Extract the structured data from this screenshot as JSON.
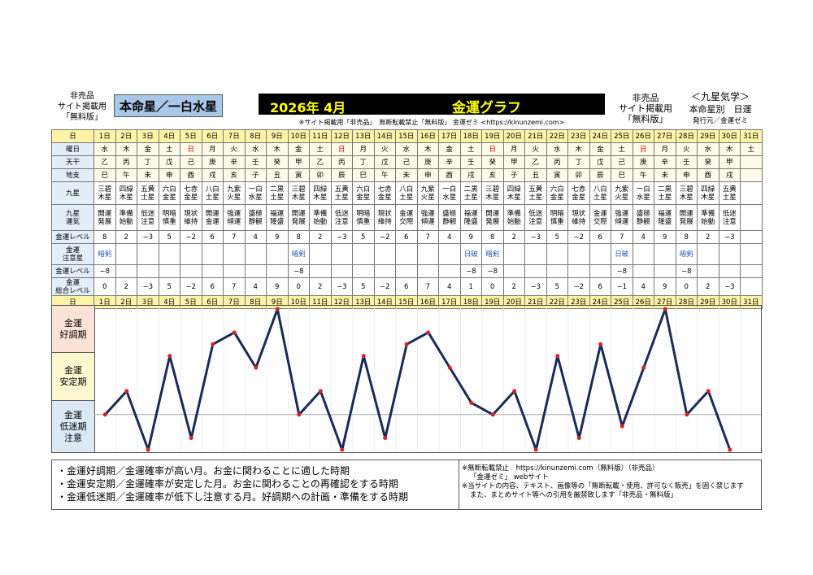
{
  "header": {
    "left_lines": [
      "非売品",
      "サイト掲載用",
      "「無料版」"
    ],
    "star_label": "本命星／一白水星",
    "year_month": "2026年 4月",
    "graph_title": "金運グラフ",
    "notice": "※サイト掲載用「非売品」　無断転載禁止「無料版」 金運ゼミ <https://kinunzemi.com>",
    "right_lines": [
      "非売品",
      "サイト掲載用",
      "「無料版」"
    ],
    "far_right_lines": [
      "＜九星気学＞",
      "本命星別　日運",
      "発行元／金運ゼミ"
    ]
  },
  "table": {
    "labels": {
      "day": "日",
      "weekday": "曜日",
      "heaven": "天干",
      "earth": "地支",
      "kyusei": "九星",
      "kyusei_luck": [
        "九星",
        "運気"
      ],
      "money_level": "金運レベル",
      "money_caution": [
        "金運",
        "注意星"
      ],
      "money_level2": "金運レベル",
      "total_level": [
        "金運",
        "総合レベル"
      ]
    },
    "days": [
      "1日",
      "2日",
      "3日",
      "4日",
      "5日",
      "6日",
      "7日",
      "8日",
      "9日",
      "10日",
      "11日",
      "12日",
      "13日",
      "14日",
      "15日",
      "16日",
      "17日",
      "18日",
      "19日",
      "20日",
      "21日",
      "22日",
      "23日",
      "24日",
      "25日",
      "26日",
      "27日",
      "28日",
      "29日",
      "30日",
      "31日"
    ],
    "weekdays": [
      "水",
      "木",
      "金",
      "土",
      "日",
      "月",
      "火",
      "水",
      "木",
      "金",
      "土",
      "日",
      "月",
      "火",
      "水",
      "木",
      "金",
      "土",
      "日",
      "月",
      "火",
      "水",
      "木",
      "金",
      "土",
      "日",
      "月",
      "火",
      "水",
      "木",
      "土"
    ],
    "heaven": [
      "乙",
      "丙",
      "丁",
      "戊",
      "己",
      "庚",
      "辛",
      "壬",
      "癸",
      "甲",
      "乙",
      "丙",
      "丁",
      "戊",
      "己",
      "庚",
      "辛",
      "壬",
      "癸",
      "甲",
      "乙",
      "丙",
      "丁",
      "戊",
      "己",
      "庚",
      "辛",
      "壬",
      "癸",
      "甲",
      ""
    ],
    "earth": [
      "巳",
      "午",
      "未",
      "申",
      "酉",
      "戌",
      "亥",
      "子",
      "丑",
      "寅",
      "卯",
      "辰",
      "巳",
      "午",
      "未",
      "申",
      "酉",
      "戌",
      "亥",
      "子",
      "丑",
      "寅",
      "卯",
      "辰",
      "巳",
      "午",
      "未",
      "申",
      "酉",
      "戌",
      ""
    ],
    "kyusei": [
      [
        "三碧",
        "木星"
      ],
      [
        "四緑",
        "木星"
      ],
      [
        "五黄",
        "土星"
      ],
      [
        "六白",
        "金星"
      ],
      [
        "七赤",
        "金星"
      ],
      [
        "八白",
        "土星"
      ],
      [
        "九紫",
        "火星"
      ],
      [
        "一白",
        "水星"
      ],
      [
        "二黒",
        "土星"
      ],
      [
        "三碧",
        "木星"
      ],
      [
        "四緑",
        "木星"
      ],
      [
        "五黄",
        "土星"
      ],
      [
        "六白",
        "金星"
      ],
      [
        "七赤",
        "金星"
      ],
      [
        "八白",
        "土星"
      ],
      [
        "九紫",
        "火星"
      ],
      [
        "一白",
        "水星"
      ],
      [
        "二黒",
        "土星"
      ],
      [
        "三碧",
        "木星"
      ],
      [
        "四緑",
        "木星"
      ],
      [
        "五黄",
        "土星"
      ],
      [
        "六白",
        "金星"
      ],
      [
        "七赤",
        "金星"
      ],
      [
        "八白",
        "土星"
      ],
      [
        "九紫",
        "火星"
      ],
      [
        "一白",
        "水星"
      ],
      [
        "二黒",
        "土星"
      ],
      [
        "三碧",
        "木星"
      ],
      [
        "四緑",
        "木星"
      ],
      [
        "五黄",
        "土星"
      ],
      [
        "",
        ""
      ]
    ],
    "luck": [
      [
        "開運",
        "発展"
      ],
      [
        "準備",
        "始動"
      ],
      [
        "低迷",
        "注意"
      ],
      [
        "明暗",
        "慎重"
      ],
      [
        "現状",
        "維持"
      ],
      [
        "開運",
        "金運"
      ],
      [
        "強運",
        "傾運"
      ],
      [
        "盛極",
        "静観"
      ],
      [
        "福運",
        "隆盛"
      ],
      [
        "開運",
        "発展"
      ],
      [
        "準備",
        "始動"
      ],
      [
        "低迷",
        "注意"
      ],
      [
        "明暗",
        "慎重"
      ],
      [
        "現状",
        "維持"
      ],
      [
        "金運",
        "交際"
      ],
      [
        "強運",
        "傾運"
      ],
      [
        "盛極",
        "静観"
      ],
      [
        "福運",
        "隆盛"
      ],
      [
        "開運",
        "発展"
      ],
      [
        "準備",
        "始動"
      ],
      [
        "低迷",
        "注意"
      ],
      [
        "明暗",
        "慎重"
      ],
      [
        "現状",
        "維持"
      ],
      [
        "金運",
        "交際"
      ],
      [
        "強運",
        "傾運"
      ],
      [
        "盛極",
        "静観"
      ],
      [
        "福運",
        "隆盛"
      ],
      [
        "開運",
        "発展"
      ],
      [
        "準備",
        "始動"
      ],
      [
        "低迷",
        "注意"
      ],
      [
        "",
        ""
      ]
    ],
    "levels": [
      "8",
      "2",
      "−3",
      "5",
      "−2",
      "6",
      "7",
      "4",
      "9",
      "8",
      "2",
      "−3",
      "5",
      "−2",
      "6",
      "7",
      "4",
      "9",
      "8",
      "2",
      "−3",
      "5",
      "−2",
      "6",
      "7",
      "4",
      "9",
      "8",
      "2",
      "−3",
      ""
    ],
    "caution": [
      "暗剣",
      "",
      "",
      "",
      "",
      "",
      "",
      "",
      "",
      "暗剣",
      "",
      "",
      "",
      "",
      "",
      "",
      "",
      "日破",
      "暗剣",
      "",
      "",
      "",
      "",
      "",
      "日破",
      "",
      "",
      "暗剣",
      "",
      "",
      ""
    ],
    "caution_levels": [
      "−8",
      "",
      "",
      "",
      "",
      "",
      "",
      "",
      "",
      "−8",
      "",
      "",
      "",
      "",
      "",
      "",
      "",
      "−8",
      "−8",
      "",
      "",
      "",
      "",
      "",
      "−8",
      "",
      "",
      "−8",
      "",
      "",
      ""
    ],
    "totals": [
      "0",
      "2",
      "−3",
      "5",
      "−2",
      "6",
      "7",
      "4",
      "9",
      "0",
      "2",
      "−3",
      "5",
      "−2",
      "6",
      "7",
      "4",
      "1",
      "0",
      "2",
      "−3",
      "5",
      "−2",
      "6",
      "−1",
      "4",
      "9",
      "0",
      "2",
      "−3",
      ""
    ]
  },
  "zones": {
    "good": [
      "金運",
      "好調期"
    ],
    "stable": [
      "金運",
      "安定期"
    ],
    "low": [
      "金運",
      "低迷期",
      "注意"
    ]
  },
  "chart_data": {
    "type": "line",
    "x": [
      "1日",
      "2日",
      "3日",
      "4日",
      "5日",
      "6日",
      "7日",
      "8日",
      "9日",
      "10日",
      "11日",
      "12日",
      "13日",
      "14日",
      "15日",
      "16日",
      "17日",
      "18日",
      "19日",
      "20日",
      "21日",
      "22日",
      "23日",
      "24日",
      "25日",
      "26日",
      "27日",
      "28日",
      "29日",
      "30日"
    ],
    "values": [
      0,
      2,
      -3,
      5,
      -2,
      6,
      7,
      4,
      9,
      0,
      2,
      -3,
      5,
      -2,
      6,
      7,
      4,
      1,
      0,
      2,
      -3,
      5,
      -2,
      6,
      -1,
      4,
      9,
      0,
      2,
      -3
    ],
    "ylim": [
      -3,
      9
    ],
    "line_color": "#1a2a5a",
    "point_color": "#e02020"
  },
  "legend": {
    "left": [
      "・金運好調期／金運確率が高い月。お金に関わることに適した時期",
      "・金運安定期／金運確率が安定した月。お金に関わることの再確認をする時期",
      "・金運低迷期／金運確率が低下し注意する月。好調期への計画・準備をする時期"
    ],
    "right": [
      "※無断転載禁止　https://kinunzemi.com（無料版）（非売品）",
      "「金運ゼミ」 webサイト",
      "※当サイトの内容、テキスト、画像等の「無断転載・使用、許可なく販売」を固く禁じます",
      "また、まとめサイト等への引用を厳禁致します「非売品・無料版」"
    ]
  },
  "colors": {
    "yellow": "#fff3a8",
    "label_bg": "#e4eef8",
    "good_zone": "#fde3d5",
    "stable_zone": "#fdf8cf",
    "low_zone": "#dbe9f7",
    "sunday": "#d00000",
    "caution": "#2060c0"
  }
}
